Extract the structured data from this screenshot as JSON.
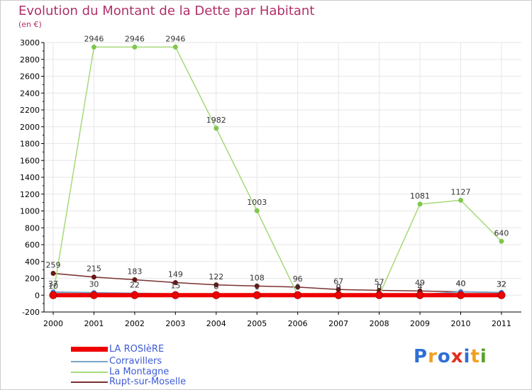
{
  "title": "Evolution du Montant de la Dette par Habitant",
  "unit": "(en €)",
  "logo": {
    "text": "Proxiti",
    "letters": [
      "P",
      "r",
      "o",
      "x",
      "i",
      "t",
      "i"
    ],
    "colors": [
      "#2f6fd6",
      "#f0a020",
      "#2f6fd6",
      "#e0301e",
      "#2f6fd6",
      "#f0a020",
      "#5aa02c"
    ]
  },
  "colors": {
    "title": "#b0306a",
    "legend_text": "#3d5bd6",
    "grid": "#e6e6e6",
    "axis": "#000000"
  },
  "chart_data": {
    "type": "line",
    "title": "Evolution du Montant de la Dette par Habitant",
    "ylabel": "(en €)",
    "xlabel": "",
    "x": [
      "2000",
      "2001",
      "2002",
      "2003",
      "2004",
      "2005",
      "2006",
      "2007",
      "2008",
      "2009",
      "2010",
      "2011"
    ],
    "ylim": [
      -200,
      3000
    ],
    "yticks": [
      -200,
      0,
      200,
      400,
      600,
      800,
      1000,
      1200,
      1400,
      1600,
      1800,
      2000,
      2200,
      2400,
      2600,
      2800,
      3000
    ],
    "grid": true,
    "legend_position": "bottom-left",
    "series": [
      {
        "name": "LA ROSIèRE",
        "color": "#ee0000",
        "marker": "#ee0000",
        "width": 6,
        "show_labels": false,
        "values": [
          0,
          0,
          0,
          0,
          0,
          0,
          0,
          0,
          0,
          0,
          0,
          0
        ]
      },
      {
        "name": "Corravillers",
        "color": "#7aa6c8",
        "marker": "#3b74d6",
        "width": 2,
        "show_labels": true,
        "values": [
          37,
          30,
          22,
          15,
          8,
          1,
          0,
          0,
          0,
          4,
          40,
          32
        ]
      },
      {
        "name": "La Montagne",
        "color": "#a6d97a",
        "marker": "#7ec84a",
        "width": 1.5,
        "show_labels": true,
        "values": [
          10,
          2946,
          2946,
          2946,
          1982,
          1003,
          0,
          0,
          0,
          1081,
          1127,
          640
        ]
      },
      {
        "name": "Rupt-sur-Moselle",
        "color": "#7a3030",
        "marker": "#6b1616",
        "width": 1.5,
        "show_labels": true,
        "values": [
          259,
          215,
          183,
          149,
          122,
          108,
          96,
          67,
          57,
          49,
          40,
          32
        ]
      }
    ]
  }
}
